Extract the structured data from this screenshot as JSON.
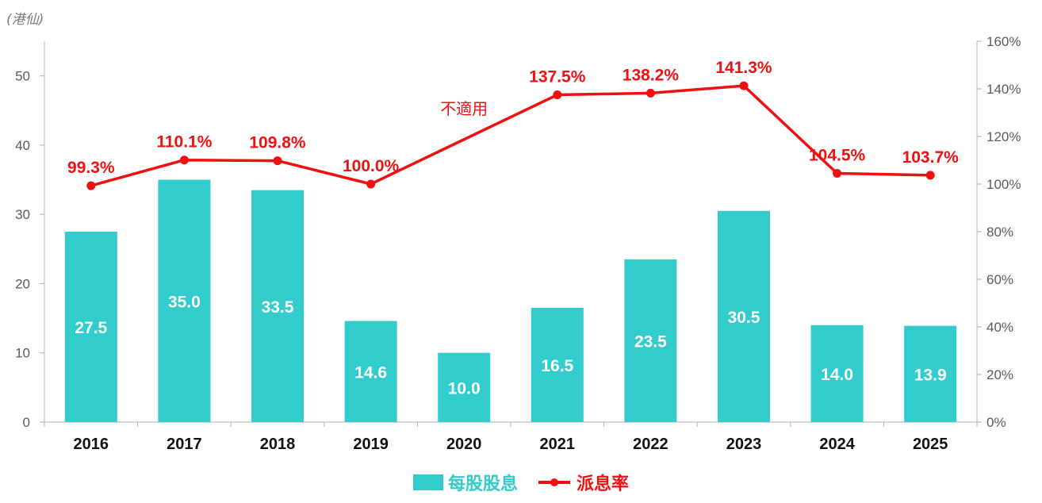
{
  "chart_data": {
    "type": "bar+line",
    "unit_label": "(港仙)",
    "categories": [
      "2016",
      "2017",
      "2018",
      "2019",
      "2020",
      "2021",
      "2022",
      "2023",
      "2024",
      "2025"
    ],
    "bar_series": {
      "name": "每股股息",
      "values": [
        27.5,
        35.0,
        33.5,
        14.6,
        10.0,
        16.5,
        23.5,
        30.5,
        14.0,
        13.9
      ],
      "labels": [
        "27.5",
        "35.0",
        "33.5",
        "14.6",
        "10.0",
        "16.5",
        "23.5",
        "30.5",
        "14.0",
        "13.9"
      ],
      "color": "#33cccc"
    },
    "line_series": {
      "name": "派息率",
      "values": [
        99.3,
        110.1,
        109.8,
        100.0,
        null,
        137.5,
        138.2,
        141.3,
        104.5,
        103.7
      ],
      "labels": [
        "99.3%",
        "110.1%",
        "109.8%",
        "100.0%",
        "不適用",
        "137.5%",
        "138.2%",
        "141.3%",
        "104.5%",
        "103.7%"
      ],
      "color": "#ee1111"
    },
    "y_left": {
      "min": 0,
      "max": 55,
      "ticks": [
        0,
        10,
        20,
        30,
        40,
        50
      ],
      "tick_labels": [
        "0",
        "10",
        "20",
        "30",
        "40",
        "50"
      ]
    },
    "y_right": {
      "min": 0,
      "max": 160,
      "ticks": [
        0,
        20,
        40,
        60,
        80,
        100,
        120,
        140,
        160
      ],
      "tick_labels": [
        "0%",
        "20%",
        "40%",
        "60%",
        "80%",
        "100%",
        "120%",
        "140%",
        "160%"
      ]
    },
    "grid": false,
    "legend_position": "bottom-center"
  }
}
